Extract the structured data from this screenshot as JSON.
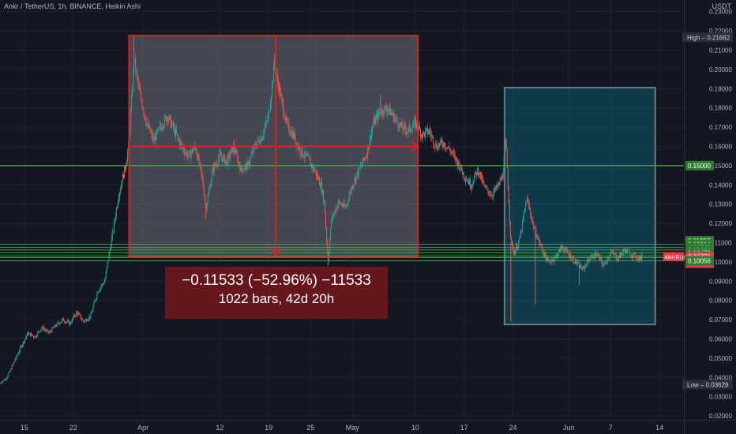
{
  "header": {
    "symbol_title": "Ankr / TetherUS, 1h, BINANCE, Heikin Ashi",
    "currency": "USDT"
  },
  "measure": {
    "line1": "−0.11533 (−52.96%) −11533",
    "line2": "1022 bars, 42d 20h"
  },
  "chart_data": {
    "type": "candlestick",
    "x_ticks": [
      {
        "label": "15",
        "day": 15
      },
      {
        "label": "22",
        "day": 22
      },
      {
        "label": "Apr",
        "day": 32
      },
      {
        "label": "12",
        "day": 43
      },
      {
        "label": "19",
        "day": 50
      },
      {
        "label": "25",
        "day": 56
      },
      {
        "label": "May",
        "day": 62
      },
      {
        "label": "10",
        "day": 71
      },
      {
        "label": "17",
        "day": 78
      },
      {
        "label": "24",
        "day": 85
      },
      {
        "label": "Jun",
        "day": 93
      },
      {
        "label": "7",
        "day": 99
      },
      {
        "label": "14",
        "day": 106
      }
    ],
    "y_ticks": [
      "0.23000",
      "0.22000",
      "0.21000",
      "0.20000",
      "0.19000",
      "0.18000",
      "0.17000",
      "0.16000",
      "0.15000",
      "0.14000",
      "0.13000",
      "0.12000",
      "0.11000",
      "0.10000",
      "0.09000",
      "0.08000",
      "0.07000",
      "0.06000",
      "0.05000",
      "0.04000",
      "0.03000",
      "0.02000"
    ],
    "ylim": [
      0.018,
      0.236
    ],
    "xlim": [
      11.5,
      109.5
    ],
    "price_badges": [
      {
        "text": "High",
        "value": "0.21662",
        "price": 0.21662,
        "kind": "high"
      },
      {
        "text": "",
        "value": "0.15000",
        "price": 0.15,
        "kind": "level"
      },
      {
        "text": "",
        "value": "0.11097",
        "price": 0.11097,
        "kind": "level"
      },
      {
        "text": "",
        "value": "0.10914",
        "price": 0.10914,
        "kind": "level"
      },
      {
        "text": "",
        "value": "0.10748",
        "price": 0.10748,
        "kind": "level"
      },
      {
        "text": "",
        "value": "0.10620",
        "price": 0.1062,
        "kind": "level"
      },
      {
        "text": "",
        "value": "0.10472",
        "price": 0.10472,
        "kind": "level"
      },
      {
        "text": "",
        "value": "0.10307",
        "price": 0.10307,
        "kind": "level"
      },
      {
        "text": "ANKRUSDT",
        "value": "0.10221",
        "price": 0.10221,
        "kind": "last",
        "sub": "20:18"
      },
      {
        "text": "",
        "value": "0.10056",
        "price": 0.10056,
        "kind": "level"
      },
      {
        "text": "Low",
        "value": "0.03629",
        "price": 0.03629,
        "kind": "low"
      }
    ],
    "horizontal_levels": [
      0.15,
      0.10914,
      0.10748,
      0.1062,
      0.10472,
      0.10307,
      0.10221,
      0.10056
    ],
    "price_path": [
      [
        11.5,
        0.037
      ],
      [
        12.5,
        0.04
      ],
      [
        13.5,
        0.048
      ],
      [
        14.5,
        0.056
      ],
      [
        15.5,
        0.063
      ],
      [
        16.5,
        0.061
      ],
      [
        17.5,
        0.066
      ],
      [
        18.5,
        0.063
      ],
      [
        19.5,
        0.067
      ],
      [
        20.5,
        0.07
      ],
      [
        21.5,
        0.068
      ],
      [
        22.5,
        0.074
      ],
      [
        23.5,
        0.069
      ],
      [
        24.5,
        0.072
      ],
      [
        25.5,
        0.085
      ],
      [
        26.5,
        0.09
      ],
      [
        27.5,
        0.112
      ],
      [
        28.5,
        0.135
      ],
      [
        29.5,
        0.15
      ],
      [
        30.0,
        0.162
      ],
      [
        30.7,
        0.205
      ],
      [
        31.5,
        0.188
      ],
      [
        32.5,
        0.172
      ],
      [
        33.5,
        0.163
      ],
      [
        34.5,
        0.17
      ],
      [
        35.5,
        0.176
      ],
      [
        36.5,
        0.168
      ],
      [
        37.5,
        0.16
      ],
      [
        38.5,
        0.155
      ],
      [
        39.5,
        0.16
      ],
      [
        40.5,
        0.143
      ],
      [
        41.0,
        0.128
      ],
      [
        42.0,
        0.148
      ],
      [
        43.0,
        0.155
      ],
      [
        44.0,
        0.152
      ],
      [
        45.0,
        0.16
      ],
      [
        46.0,
        0.148
      ],
      [
        47.0,
        0.15
      ],
      [
        48.0,
        0.16
      ],
      [
        49.0,
        0.165
      ],
      [
        50.0,
        0.176
      ],
      [
        50.8,
        0.202
      ],
      [
        51.5,
        0.19
      ],
      [
        52.5,
        0.172
      ],
      [
        53.5,
        0.166
      ],
      [
        54.5,
        0.158
      ],
      [
        55.5,
        0.154
      ],
      [
        56.5,
        0.148
      ],
      [
        57.5,
        0.14
      ],
      [
        58.0,
        0.13
      ],
      [
        58.5,
        0.1
      ],
      [
        59.0,
        0.122
      ],
      [
        60.0,
        0.131
      ],
      [
        61.0,
        0.128
      ],
      [
        62.0,
        0.14
      ],
      [
        63.0,
        0.148
      ],
      [
        64.0,
        0.156
      ],
      [
        65.0,
        0.172
      ],
      [
        66.0,
        0.178
      ],
      [
        67.0,
        0.18
      ],
      [
        68.0,
        0.175
      ],
      [
        69.0,
        0.17
      ],
      [
        70.0,
        0.168
      ],
      [
        71.0,
        0.172
      ],
      [
        72.0,
        0.166
      ],
      [
        73.0,
        0.168
      ],
      [
        74.0,
        0.16
      ],
      [
        75.0,
        0.162
      ],
      [
        76.0,
        0.158
      ],
      [
        77.0,
        0.152
      ],
      [
        78.0,
        0.145
      ],
      [
        79.0,
        0.14
      ],
      [
        80.0,
        0.148
      ],
      [
        81.0,
        0.138
      ],
      [
        82.0,
        0.135
      ],
      [
        83.0,
        0.14
      ],
      [
        83.5,
        0.145
      ],
      [
        84.0,
        0.162
      ],
      [
        84.7,
        0.11
      ],
      [
        85.2,
        0.105
      ],
      [
        86.0,
        0.112
      ],
      [
        87.0,
        0.133
      ],
      [
        88.0,
        0.118
      ],
      [
        89.0,
        0.108
      ],
      [
        90.0,
        0.1
      ],
      [
        91.0,
        0.102
      ],
      [
        92.0,
        0.108
      ],
      [
        93.0,
        0.104
      ],
      [
        94.0,
        0.1
      ],
      [
        95.0,
        0.096
      ],
      [
        96.0,
        0.102
      ],
      [
        97.0,
        0.104
      ],
      [
        98.0,
        0.098
      ],
      [
        99.0,
        0.105
      ],
      [
        100.0,
        0.102
      ],
      [
        101.0,
        0.106
      ],
      [
        102.0,
        0.104
      ],
      [
        103.0,
        0.102
      ],
      [
        103.5,
        0.10221
      ]
    ],
    "low_spikes": [
      [
        84.7,
        0.069
      ],
      [
        88.2,
        0.078
      ],
      [
        58.5,
        0.098
      ],
      [
        41.0,
        0.122
      ],
      [
        94.5,
        0.088
      ]
    ],
    "high_spikes": [
      [
        30.7,
        0.218
      ],
      [
        50.8,
        0.208
      ],
      [
        84.0,
        0.164
      ],
      [
        66.0,
        0.187
      ]
    ],
    "measure_box": {
      "x_start": 30.0,
      "x_end": 71.4,
      "y_top": 0.2175,
      "y_bottom": 0.1025,
      "mid_price": 0.16,
      "mid_day": 51.0
    },
    "range_box": {
      "x_start": 83.8,
      "x_end": 105.4,
      "y_top": 0.1905,
      "y_bottom": 0.0675
    }
  }
}
